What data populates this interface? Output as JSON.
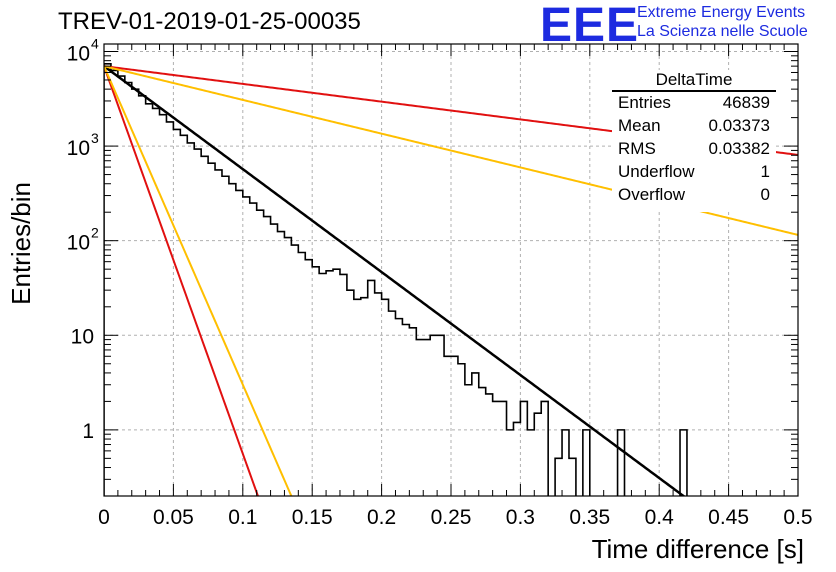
{
  "title": "TREV-01-2019-01-25-00035",
  "logo": {
    "mark": "EEE",
    "line1": "Extreme Energy Events",
    "line2": "La Scienza nelle Scuole"
  },
  "stats": {
    "name": "DeltaTime",
    "rows": [
      {
        "key": "Entries",
        "value": "46839"
      },
      {
        "key": "Mean",
        "value": "0.03373"
      },
      {
        "key": "RMS",
        "value": "0.03382"
      },
      {
        "key": "Underflow",
        "value": "1"
      },
      {
        "key": "Overflow",
        "value": "0"
      }
    ]
  },
  "chart_data": {
    "type": "line",
    "xlabel": "Time difference [s]",
    "ylabel": "Entries/bin",
    "xlim": [
      0,
      0.5
    ],
    "ylim": [
      0.2,
      12000
    ],
    "yscale": "log",
    "grid": true,
    "xticks": [
      "0",
      "0.05",
      "0.1",
      "0.15",
      "0.2",
      "0.25",
      "0.3",
      "0.35",
      "0.4",
      "0.45",
      "0.5"
    ],
    "yticks": [
      {
        "value": 1,
        "label": "1"
      },
      {
        "value": 10,
        "label": "10"
      },
      {
        "value": 100,
        "label": "10",
        "exp": "2"
      },
      {
        "value": 1000,
        "label": "10",
        "exp": "3"
      },
      {
        "value": 10000,
        "label": "10",
        "exp": "4"
      }
    ],
    "histogram": {
      "bin_width": 0.005,
      "values": [
        7400,
        6300,
        5500,
        4700,
        4000,
        3400,
        2800,
        2500,
        2150,
        1800,
        1500,
        1300,
        1080,
        930,
        780,
        660,
        560,
        480,
        400,
        340,
        290,
        250,
        210,
        180,
        150,
        125,
        108,
        90,
        75,
        63,
        53,
        45,
        48,
        50,
        44,
        30,
        24,
        25,
        38,
        28,
        24,
        18,
        15,
        13,
        12,
        9,
        9,
        10,
        10,
        6,
        6,
        5,
        3,
        4,
        2.8,
        2.4,
        2,
        2,
        1,
        1.2,
        2,
        1,
        1.5,
        2,
        0,
        0.5,
        1,
        0.5,
        0,
        1,
        0,
        0,
        0,
        0,
        1,
        0,
        0,
        0,
        0,
        0,
        0,
        0,
        0,
        1,
        0,
        0,
        0,
        0,
        0,
        0,
        0,
        0,
        0,
        0,
        0,
        0,
        0,
        0,
        0,
        0
      ]
    },
    "series": [
      {
        "type": "exp",
        "color": "#000000",
        "A": 7000,
        "tau": 0.0399,
        "width": 2.5
      },
      {
        "type": "exp",
        "color": "#e11010",
        "A": 7000,
        "tau": 0.0106,
        "width": 2
      },
      {
        "type": "exp",
        "color": "#ffbf00",
        "A": 7000,
        "tau": 0.0129,
        "width": 2
      },
      {
        "type": "exp",
        "color": "#e11010",
        "A": 7000,
        "tau": 0.2314,
        "width": 2
      },
      {
        "type": "exp",
        "color": "#ffbf00",
        "A": 7000,
        "tau": 0.1217,
        "width": 2
      }
    ]
  }
}
